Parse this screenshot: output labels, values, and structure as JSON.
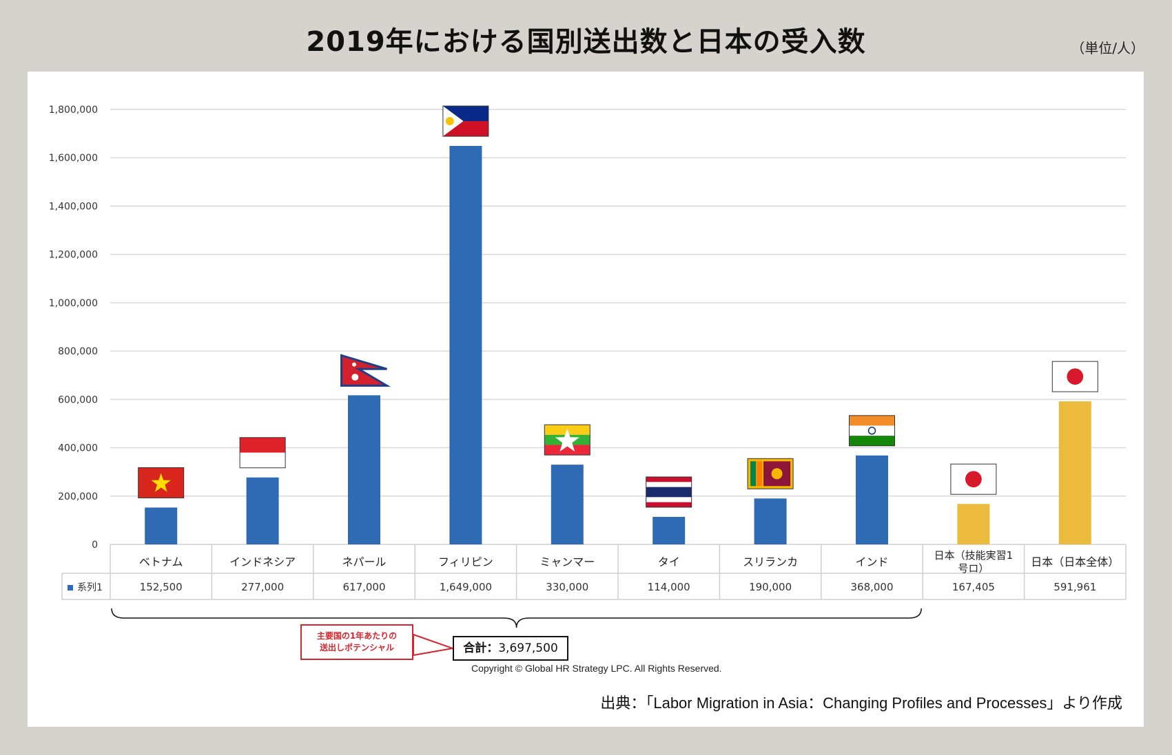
{
  "title": "2019年における国別送出数と日本の受入数",
  "unit_label": "（単位/人）",
  "source": "出典：「Labor Migration in Asia：Changing Profiles and Processes」より作成",
  "copyright": "Copyright © Global HR Strategy LPC. All Rights Reserved.",
  "callout": {
    "line1": "主要国の1年あたりの",
    "line2": "送出しポテンシャル"
  },
  "total": {
    "label": "合計：",
    "value": "3,697,500"
  },
  "colors": {
    "blue": "#2f6ab4",
    "yellow": "#ecbb3e"
  },
  "chart_data": {
    "type": "bar",
    "series_name": "系列1",
    "ylim": [
      0,
      1800000
    ],
    "yticks": [
      "0",
      "200,000",
      "400,000",
      "600,000",
      "800,000",
      "1,000,000",
      "1,200,000",
      "1,400,000",
      "1,600,000",
      "1,800,000"
    ],
    "grid": true,
    "categories": [
      {
        "label": "ベトナム",
        "value": 152500,
        "display": "152,500",
        "color": "blue",
        "flag": "vietnam-flag-icon"
      },
      {
        "label": "インドネシア",
        "value": 277000,
        "display": "277,000",
        "color": "blue",
        "flag": "indonesia-flag-icon"
      },
      {
        "label": "ネパール",
        "value": 617000,
        "display": "617,000",
        "color": "blue",
        "flag": "nepal-flag-icon"
      },
      {
        "label": "フィリピン",
        "value": 1649000,
        "display": "1,649,000",
        "color": "blue",
        "flag": "philippines-flag-icon"
      },
      {
        "label": "ミャンマー",
        "value": 330000,
        "display": "330,000",
        "color": "blue",
        "flag": "myanmar-flag-icon"
      },
      {
        "label": "タイ",
        "value": 114000,
        "display": "114,000",
        "color": "blue",
        "flag": "thailand-flag-icon"
      },
      {
        "label": "スリランカ",
        "value": 190000,
        "display": "190,000",
        "color": "blue",
        "flag": "srilanka-flag-icon"
      },
      {
        "label": "インド",
        "value": 368000,
        "display": "368,000",
        "color": "blue",
        "flag": "india-flag-icon"
      },
      {
        "label": "日本（技能実習1号ロ）",
        "label_lines": [
          "日本（技能実習1",
          "号ロ）"
        ],
        "value": 167405,
        "display": "167,405",
        "color": "yellow",
        "flag": "japan-flag-icon"
      },
      {
        "label": "日本（日本全体）",
        "value": 591961,
        "display": "591,961",
        "color": "yellow",
        "flag": "japan-flag-icon"
      }
    ]
  }
}
